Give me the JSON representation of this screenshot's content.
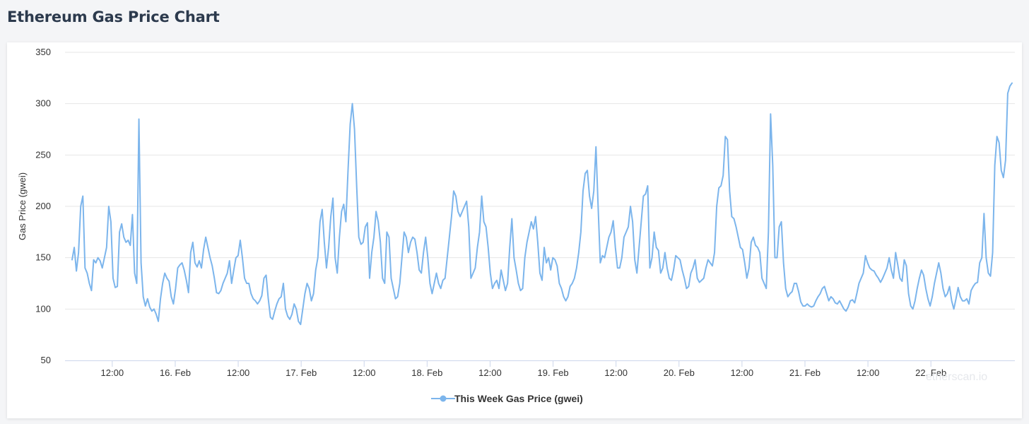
{
  "page": {
    "title": "Ethereum Gas Price Chart"
  },
  "watermark": {
    "text": "etherscan.io"
  },
  "chart_data": {
    "type": "line",
    "title": "",
    "xlabel": "",
    "ylabel": "Gas Price (gwei)",
    "ylim": [
      50,
      350
    ],
    "yticks": [
      50,
      100,
      150,
      200,
      250,
      300,
      350
    ],
    "xlim": [
      "15 Feb 03:00",
      "22 Feb 16:00"
    ],
    "x_start": "15 Feb 03:00",
    "x_interval": "30 min",
    "xticks": [
      {
        "label": "12:00",
        "at": "15 Feb 12:00"
      },
      {
        "label": "16. Feb",
        "at": "16 Feb 00:00"
      },
      {
        "label": "12:00",
        "at": "16 Feb 12:00"
      },
      {
        "label": "17. Feb",
        "at": "17 Feb 00:00"
      },
      {
        "label": "12:00",
        "at": "17 Feb 12:00"
      },
      {
        "label": "18. Feb",
        "at": "18 Feb 00:00"
      },
      {
        "label": "12:00",
        "at": "18 Feb 12:00"
      },
      {
        "label": "19. Feb",
        "at": "19 Feb 00:00"
      },
      {
        "label": "12:00",
        "at": "19 Feb 12:00"
      },
      {
        "label": "20. Feb",
        "at": "20 Feb 00:00"
      },
      {
        "label": "12:00",
        "at": "20 Feb 12:00"
      },
      {
        "label": "21. Feb",
        "at": "21 Feb 00:00"
      },
      {
        "label": "12:00",
        "at": "21 Feb 12:00"
      },
      {
        "label": "22. Feb",
        "at": "22 Feb 00:00"
      }
    ],
    "grid": true,
    "legend": "bottom-center",
    "series": [
      {
        "name": "This Week Gas Price (gwei)",
        "color": "#7cb5ec",
        "values": [
          148,
          160,
          137,
          155,
          200,
          210,
          140,
          135,
          125,
          118,
          148,
          145,
          150,
          147,
          140,
          150,
          160,
          200,
          185,
          130,
          121,
          122,
          175,
          183,
          170,
          165,
          167,
          162,
          192,
          135,
          125,
          285,
          145,
          112,
          103,
          110,
          102,
          98,
          100,
          95,
          88,
          110,
          125,
          135,
          130,
          127,
          112,
          105,
          120,
          140,
          143,
          145,
          138,
          128,
          116,
          155,
          165,
          145,
          141,
          147,
          140,
          158,
          170,
          160,
          150,
          142,
          130,
          116,
          115,
          118,
          125,
          130,
          135,
          147,
          125,
          138,
          150,
          152,
          167,
          150,
          130,
          125,
          125,
          115,
          110,
          108,
          105,
          108,
          113,
          130,
          133,
          110,
          92,
          90,
          98,
          105,
          110,
          112,
          125,
          100,
          93,
          90,
          95,
          105,
          100,
          88,
          85,
          100,
          115,
          125,
          120,
          108,
          115,
          138,
          150,
          185,
          197,
          165,
          140,
          160,
          190,
          208,
          150,
          135,
          170,
          195,
          202,
          185,
          235,
          280,
          300,
          275,
          220,
          170,
          163,
          165,
          180,
          184,
          130,
          155,
          170,
          195,
          185,
          165,
          130,
          125,
          175,
          170,
          130,
          120,
          110,
          112,
          125,
          150,
          175,
          170,
          155,
          165,
          170,
          168,
          155,
          138,
          135,
          155,
          170,
          150,
          125,
          115,
          125,
          135,
          125,
          120,
          128,
          130,
          150,
          170,
          190,
          215,
          210,
          195,
          190,
          195,
          200,
          205,
          180,
          130,
          135,
          140,
          160,
          175,
          210,
          185,
          180,
          160,
          135,
          120,
          125,
          128,
          120,
          138,
          128,
          118,
          125,
          160,
          188,
          150,
          138,
          125,
          118,
          120,
          150,
          165,
          175,
          185,
          178,
          190,
          165,
          135,
          128,
          160,
          145,
          150,
          138,
          150,
          148,
          142,
          125,
          120,
          112,
          108,
          112,
          122,
          125,
          130,
          140,
          155,
          175,
          215,
          232,
          235,
          210,
          198,
          215,
          258,
          200,
          145,
          152,
          150,
          160,
          170,
          175,
          186,
          160,
          140,
          140,
          150,
          170,
          175,
          180,
          200,
          185,
          148,
          135,
          160,
          185,
          210,
          212,
          220,
          140,
          150,
          175,
          160,
          157,
          135,
          140,
          155,
          140,
          130,
          128,
          138,
          152,
          150,
          148,
          138,
          130,
          120,
          122,
          135,
          140,
          148,
          130,
          126,
          128,
          130,
          140,
          148,
          145,
          142,
          155,
          200,
          218,
          220,
          230,
          268,
          265,
          215,
          190,
          188,
          180,
          170,
          160,
          158,
          145,
          130,
          140,
          165,
          170,
          162,
          160,
          155,
          130,
          125,
          120,
          175,
          290,
          240,
          150,
          150,
          180,
          185,
          145,
          120,
          112,
          115,
          117,
          125,
          125,
          117,
          107,
          103,
          103,
          105,
          103,
          102,
          103,
          108,
          112,
          115,
          120,
          122,
          115,
          108,
          112,
          110,
          106,
          105,
          108,
          104,
          100,
          98,
          102,
          108,
          109,
          106,
          115,
          125,
          130,
          135,
          152,
          145,
          140,
          138,
          137,
          133,
          130,
          126,
          130,
          135,
          140,
          150,
          138,
          130,
          155,
          143,
          130,
          127,
          148,
          142,
          115,
          103,
          100,
          108,
          120,
          130,
          138,
          133,
          120,
          110,
          103,
          112,
          125,
          135,
          145,
          135,
          120,
          112,
          115,
          122,
          108,
          100,
          110,
          121,
          112,
          108,
          108,
          110,
          105,
          118,
          122,
          125,
          126,
          145,
          150,
          193,
          150,
          135,
          132,
          155,
          240,
          268,
          262,
          235,
          228,
          245,
          310,
          317,
          320
        ]
      }
    ]
  }
}
